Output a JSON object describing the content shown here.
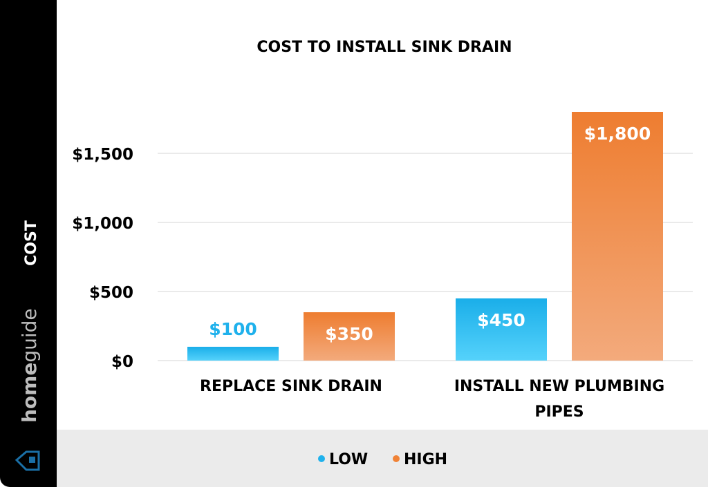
{
  "brand": {
    "name": "homeguide",
    "name_bold": "home",
    "name_light": "guide"
  },
  "chart_data": {
    "type": "bar",
    "title": "COST TO INSTALL SINK DRAIN",
    "ylabel": "COST",
    "xlabel": "",
    "categories": [
      "REPLACE SINK DRAIN",
      "INSTALL NEW PLUMBING PIPES"
    ],
    "series": [
      {
        "name": "LOW",
        "values": [
          100,
          450
        ],
        "labels": [
          "$100",
          "$450"
        ],
        "color": "#1fb1ec"
      },
      {
        "name": "HIGH",
        "values": [
          350,
          1800
        ],
        "labels": [
          "$350",
          "$1,800"
        ],
        "color": "#f08236"
      }
    ],
    "ylim": [
      0,
      1800
    ],
    "yticks": [
      0,
      500,
      1000,
      1500
    ],
    "ytick_labels": [
      "$0",
      "$500",
      "$1,000",
      "$1,500"
    ],
    "grid": true,
    "legend": "bottom"
  }
}
